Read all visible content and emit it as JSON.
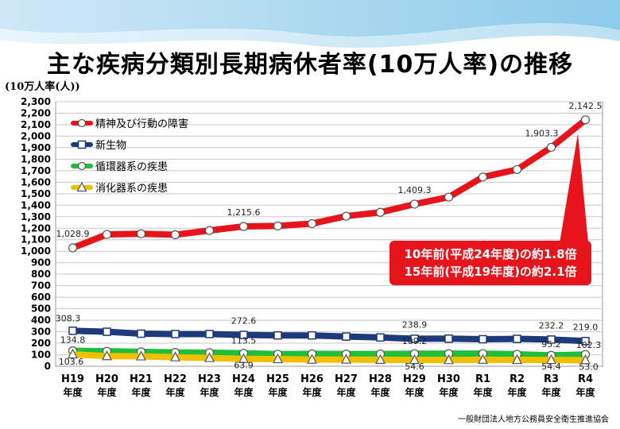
{
  "title": "主な疾病分類別長期病休者率(10万人率)の推移",
  "unit_label": "(10万人率(人))",
  "source": "一般財団法人地方公務員安全衛生推進協会",
  "callout": {
    "line1": "10年前(平成24年度)の約1.8倍",
    "line2": "15年前(平成19年度)の約2.1倍"
  },
  "colors": {
    "red": "#e8141b",
    "navy": "#1f3a7a",
    "green": "#1fbf3a",
    "yellow": "#f0c000"
  },
  "chart_data": {
    "type": "line",
    "categories": [
      "H19",
      "H20",
      "H21",
      "H22",
      "H23",
      "H24",
      "H25",
      "H26",
      "H27",
      "H28",
      "H29",
      "H30",
      "R1",
      "R2",
      "R3",
      "R4"
    ],
    "category_suffix": "年度",
    "ylim": [
      0,
      2300
    ],
    "yticks": [
      0,
      100,
      200,
      300,
      400,
      500,
      600,
      700,
      800,
      900,
      1000,
      1100,
      1200,
      1300,
      1400,
      1500,
      1600,
      1700,
      1800,
      1900,
      2000,
      2100,
      2200,
      2300
    ],
    "grid": true,
    "legend_position": "top-left",
    "series": [
      {
        "name": "精神及び行動の障害",
        "color": "#e8141b",
        "marker": "circle",
        "values": [
          1028.9,
          1146,
          1152,
          1143,
          1180,
          1215.6,
          1220,
          1240,
          1305,
          1338,
          1409.3,
          1470,
          1645,
          1710,
          1903.3,
          2142.5
        ],
        "labels": {
          "0": "1,028.9",
          "5": "1,215.6",
          "10": "1,409.3",
          "14": "1,903.3",
          "15": "2,142.5"
        }
      },
      {
        "name": "新生物",
        "color": "#1f3a7a",
        "marker": "square",
        "values": [
          308.3,
          300,
          283,
          280,
          280,
          272.6,
          268,
          268,
          258,
          250,
          238.9,
          240,
          235,
          238,
          232.2,
          219.0
        ],
        "labels": {
          "0": "308.3",
          "5": "272.6",
          "10": "238.9",
          "14": "232.2",
          "15": "219.0"
        }
      },
      {
        "name": "循環器系の疾患",
        "color": "#1fbf3a",
        "marker": "circle",
        "values": [
          134.8,
          130,
          125,
          120,
          118,
          113.5,
          105,
          108,
          106,
          106,
          109.2,
          110,
          110,
          104,
          95.2,
          102.3
        ],
        "labels": {
          "0": "134.8",
          "5": "113.5",
          "10": "109.2",
          "14": "95.2",
          "15": "102.3"
        }
      },
      {
        "name": "消化器系の疾患",
        "color": "#f0c000",
        "marker": "triangle",
        "values": [
          103.6,
          88,
          86,
          78,
          72,
          63.9,
          62,
          58,
          58,
          56,
          54.6,
          54,
          57,
          55,
          54.4,
          53.0
        ],
        "labels": {
          "0": "103.6",
          "5": "63.9",
          "10": "54.6",
          "14": "54.4",
          "15": "53.0"
        }
      }
    ]
  }
}
